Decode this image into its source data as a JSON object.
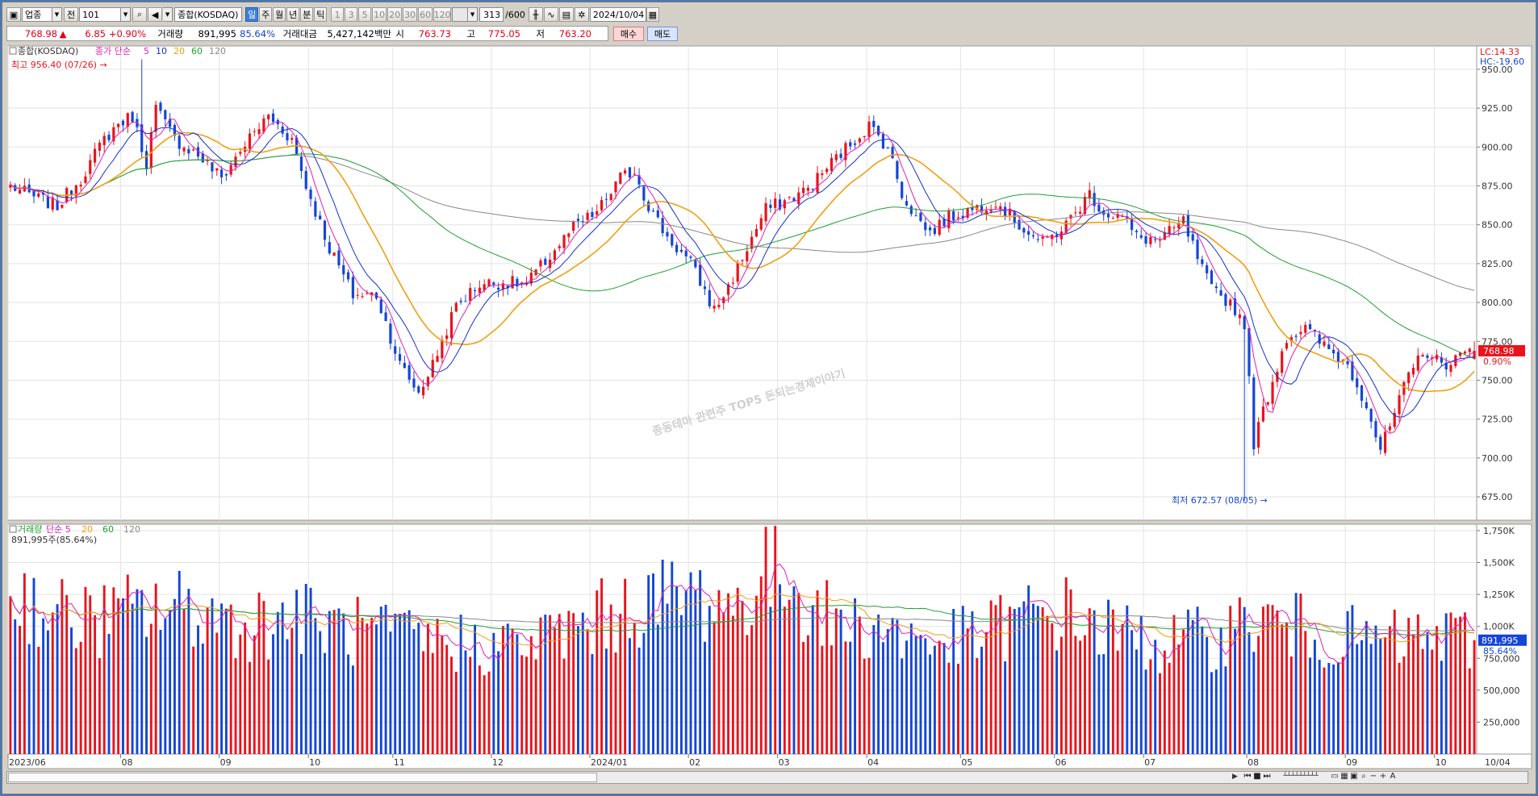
{
  "toolbar": {
    "market_select": "업종",
    "prev_label": "전",
    "code_value": "101",
    "index_name": "종합(KOSDAQ)",
    "period_tabs": [
      "일",
      "주",
      "월",
      "년",
      "분",
      "틱"
    ],
    "selected_period": "일",
    "interval_buttons": [
      "1",
      "3",
      "5",
      "10",
      "20",
      "30",
      "60",
      "120"
    ],
    "count_value": "313",
    "count_total": "/600",
    "date_value": "2024/10/04"
  },
  "infobar": {
    "price": "768.98",
    "change_arrow": "▲",
    "change": "6.85",
    "change_pct": "+0.90%",
    "volume_label": "거래량",
    "volume": "891,995",
    "volume_ratio": "85.64%",
    "amount_label": "거래대금",
    "amount": "5,427,142백만",
    "open_label": "시",
    "open": "763.73",
    "high_label": "고",
    "high": "775.05",
    "low_label": "저",
    "low": "763.20",
    "buy_label": "매수",
    "sell_label": "매도"
  },
  "colors": {
    "up": "#e8131c",
    "down": "#1445d6",
    "ma5": "#e020b8",
    "ma10": "#1430d0",
    "ma20": "#f0a010",
    "ma60": "#1ea030",
    "ma120": "#888888"
  },
  "chart_data": [
    {
      "type": "candlestick",
      "legend_title": "종합(KOSDAQ)",
      "legend_items": [
        {
          "label": "종가 단순",
          "color": "#e020b8"
        },
        {
          "label": "5",
          "color": "#e020b8"
        },
        {
          "label": "10",
          "color": "#1430d0"
        },
        {
          "label": "20",
          "color": "#f0a010"
        },
        {
          "label": "60",
          "color": "#1ea030"
        },
        {
          "label": "120",
          "color": "#888888"
        }
      ],
      "high_annotation": "최고 956.40 (07/26)",
      "low_annotation": "최저 672.57 (08/05)",
      "lc_label": "LC:14.33",
      "hc_label": "HC:-19.60",
      "watermark": "종동테마 관련주 TOP5 돈되는경제이야기",
      "ylim": [
        660,
        965
      ],
      "yticks": [
        675,
        700,
        725,
        750,
        775,
        800,
        825,
        850,
        875,
        900,
        925,
        950
      ],
      "ytick_labels": [
        "675.00",
        "700.00",
        "725.00",
        "750.00",
        "775.00",
        "800.00",
        "825.00",
        "850.00",
        "875.00",
        "900.00",
        "925.00",
        "950.00"
      ],
      "last_price_label": "768.98",
      "last_pct_label": "0.90%",
      "n_bars": 313,
      "anchors_close": [
        [
          0,
          875
        ],
        [
          5,
          868
        ],
        [
          10,
          862
        ],
        [
          15,
          880
        ],
        [
          20,
          905
        ],
        [
          23,
          915
        ],
        [
          26,
          920
        ],
        [
          29,
          890
        ],
        [
          31,
          925
        ],
        [
          35,
          905
        ],
        [
          40,
          895
        ],
        [
          45,
          880
        ],
        [
          50,
          902
        ],
        [
          55,
          920
        ],
        [
          60,
          905
        ],
        [
          63,
          875
        ],
        [
          68,
          835
        ],
        [
          73,
          805
        ],
        [
          78,
          805
        ],
        [
          83,
          760
        ],
        [
          87,
          742
        ],
        [
          90,
          760
        ],
        [
          95,
          798
        ],
        [
          100,
          812
        ],
        [
          105,
          813
        ],
        [
          110,
          812
        ],
        [
          115,
          830
        ],
        [
          120,
          848
        ],
        [
          125,
          858
        ],
        [
          130,
          880
        ],
        [
          133,
          885
        ],
        [
          136,
          862
        ],
        [
          140,
          842
        ],
        [
          145,
          825
        ],
        [
          150,
          795
        ],
        [
          153,
          810
        ],
        [
          157,
          835
        ],
        [
          161,
          860
        ],
        [
          165,
          865
        ],
        [
          170,
          873
        ],
        [
          175,
          890
        ],
        [
          180,
          905
        ],
        [
          183,
          914
        ],
        [
          187,
          900
        ],
        [
          190,
          870
        ],
        [
          193,
          855
        ],
        [
          196,
          845
        ],
        [
          200,
          855
        ],
        [
          205,
          860
        ],
        [
          210,
          865
        ],
        [
          215,
          850
        ],
        [
          220,
          838
        ],
        [
          225,
          850
        ],
        [
          230,
          870
        ],
        [
          233,
          858
        ],
        [
          237,
          855
        ],
        [
          240,
          842
        ],
        [
          245,
          840
        ],
        [
          250,
          852
        ],
        [
          253,
          828
        ],
        [
          256,
          808
        ],
        [
          260,
          800
        ],
        [
          263,
          787
        ],
        [
          265,
          710
        ],
        [
          268,
          740
        ],
        [
          272,
          778
        ],
        [
          276,
          783
        ],
        [
          280,
          772
        ],
        [
          285,
          760
        ],
        [
          289,
          735
        ],
        [
          292,
          705
        ],
        [
          294,
          720
        ],
        [
          297,
          745
        ],
        [
          301,
          770
        ],
        [
          305,
          760
        ],
        [
          312,
          768.98
        ]
      ],
      "volume_panel": {
        "legend_items": [
          {
            "label": "거래량",
            "color": "#1ea030"
          },
          {
            "label": "단순 5",
            "color": "#e020b8"
          },
          {
            "label": "20",
            "color": "#f0a010"
          },
          {
            "label": "60",
            "color": "#1ea030"
          },
          {
            "label": "120",
            "color": "#888888"
          }
        ],
        "current_label": "891,995주(85.64%)",
        "ylim": [
          0,
          1800000
        ],
        "yticks": [
          250000,
          500000,
          750000,
          1000000,
          1250000,
          1500000,
          1750000
        ],
        "ytick_labels": [
          "250,000",
          "500,000",
          "750,000",
          "1,000K",
          "1,250K",
          "1,500K",
          "1,750K"
        ],
        "last_value_label": "891,995",
        "last_pct_label": "85.64%",
        "anchors_volume": [
          [
            0,
            1280000
          ],
          [
            10,
            1080000
          ],
          [
            20,
            1050000
          ],
          [
            30,
            1150000
          ],
          [
            40,
            1120000
          ],
          [
            50,
            1020000
          ],
          [
            60,
            1080000
          ],
          [
            70,
            980000
          ],
          [
            80,
            920000
          ],
          [
            90,
            880000
          ],
          [
            100,
            860000
          ],
          [
            110,
            860000
          ],
          [
            115,
            920000
          ],
          [
            125,
            1050000
          ],
          [
            135,
            1180000
          ],
          [
            145,
            1250000
          ],
          [
            155,
            1150000
          ],
          [
            160,
            1380000
          ],
          [
            165,
            1400000
          ],
          [
            175,
            1020000
          ],
          [
            185,
            1000000
          ],
          [
            195,
            880000
          ],
          [
            205,
            900000
          ],
          [
            215,
            1060000
          ],
          [
            225,
            1100000
          ],
          [
            235,
            950000
          ],
          [
            245,
            860000
          ],
          [
            255,
            900000
          ],
          [
            265,
            1050000
          ],
          [
            275,
            980000
          ],
          [
            285,
            900000
          ],
          [
            295,
            880000
          ],
          [
            305,
            920000
          ],
          [
            312,
            891995
          ]
        ]
      },
      "x_axis_labels": [
        {
          "bar": 0,
          "label": "2023/06"
        },
        {
          "bar": 24,
          "label": "08"
        },
        {
          "bar": 45,
          "label": "09"
        },
        {
          "bar": 64,
          "label": "10"
        },
        {
          "bar": 82,
          "label": "11"
        },
        {
          "bar": 103,
          "label": "12"
        },
        {
          "bar": 124,
          "label": "2024/01"
        },
        {
          "bar": 145,
          "label": "02"
        },
        {
          "bar": 164,
          "label": "03"
        },
        {
          "bar": 183,
          "label": "04"
        },
        {
          "bar": 203,
          "label": "05"
        },
        {
          "bar": 223,
          "label": "06"
        },
        {
          "bar": 242,
          "label": "07"
        },
        {
          "bar": 264,
          "label": "08"
        },
        {
          "bar": 285,
          "label": "09"
        },
        {
          "bar": 304,
          "label": "10"
        }
      ],
      "x_axis_end_label": "10/04"
    }
  ]
}
